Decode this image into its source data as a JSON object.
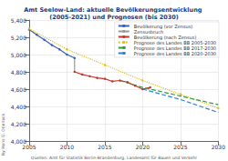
{
  "chart_data": {
    "type": "line",
    "title": "Amt Seelow-Land: aktuelle Bevölkerungsentwicklung (2005-2021) und Prognosen (bis 2030)",
    "annotations": [
      "By Hans G. Oberlack",
      "Quellen: Amt für Statistik Berlin-Brandenburg, Landesamt für Bauen und Verkehr"
    ],
    "xlim": [
      2005,
      2030
    ],
    "xticks": [
      2005,
      2010,
      2015,
      2020,
      2025,
      2030
    ],
    "ylim": [
      4000,
      5400
    ],
    "yticks": [
      {
        "value": 4000,
        "label": "4,000"
      },
      {
        "value": 4200,
        "label": "4,200"
      },
      {
        "value": 4400,
        "label": "4,400"
      },
      {
        "value": 4600,
        "label": "4,600"
      },
      {
        "value": 4800,
        "label": "4,800"
      },
      {
        "value": 5000,
        "label": "5,000"
      },
      {
        "value": 5200,
        "label": "5,200"
      },
      {
        "value": 5400,
        "label": "5,400"
      }
    ],
    "grid": true,
    "legend": "upper right",
    "series": [
      {
        "name": "Bevölkerung (vor Zensus)",
        "color": "#3a5fb8",
        "marker": "circle",
        "line_style": "solid",
        "x": [
          2005,
          2006,
          2007,
          2008,
          2009,
          2010,
          2011
        ],
        "values": [
          5290,
          5230,
          5170,
          5110,
          5060,
          5000,
          4960
        ]
      },
      {
        "name": "Zensusbruch",
        "color": "#9a9a9a",
        "marker": "none",
        "line_style": "solid",
        "x": [
          2011,
          2011
        ],
        "values": [
          4960,
          4800
        ]
      },
      {
        "name": "Bevölkerung (nach Zensus)",
        "color": "#c0392b",
        "marker": "circle",
        "line_style": "solid",
        "x": [
          2011,
          2012,
          2013,
          2014,
          2015,
          2016,
          2017,
          2018,
          2019,
          2020,
          2021
        ],
        "values": [
          4800,
          4770,
          4750,
          4730,
          4720,
          4690,
          4700,
          4680,
          4640,
          4600,
          4620
        ]
      },
      {
        "name": "Prognose des Landes BB 2005-2030",
        "color": "#e0c020",
        "marker": "circle",
        "line_style": "dotted",
        "x": [
          2005,
          2010,
          2015,
          2020,
          2025,
          2030
        ],
        "values": [
          5300,
          5060,
          4880,
          4700,
          4540,
          4380
        ]
      },
      {
        "name": "Prognose des Landes BB 2017-2030",
        "color": "#2e9e3e",
        "marker": "none",
        "line_style": "dashed",
        "x": [
          2017,
          2020,
          2025,
          2030
        ],
        "values": [
          4700,
          4620,
          4520,
          4420
        ]
      },
      {
        "name": "Prognose des Landes BB 2020-2030",
        "color": "#3080d0",
        "marker": "none",
        "line_style": "dashed",
        "x": [
          2020,
          2025,
          2030
        ],
        "values": [
          4600,
          4480,
          4330
        ]
      }
    ]
  }
}
